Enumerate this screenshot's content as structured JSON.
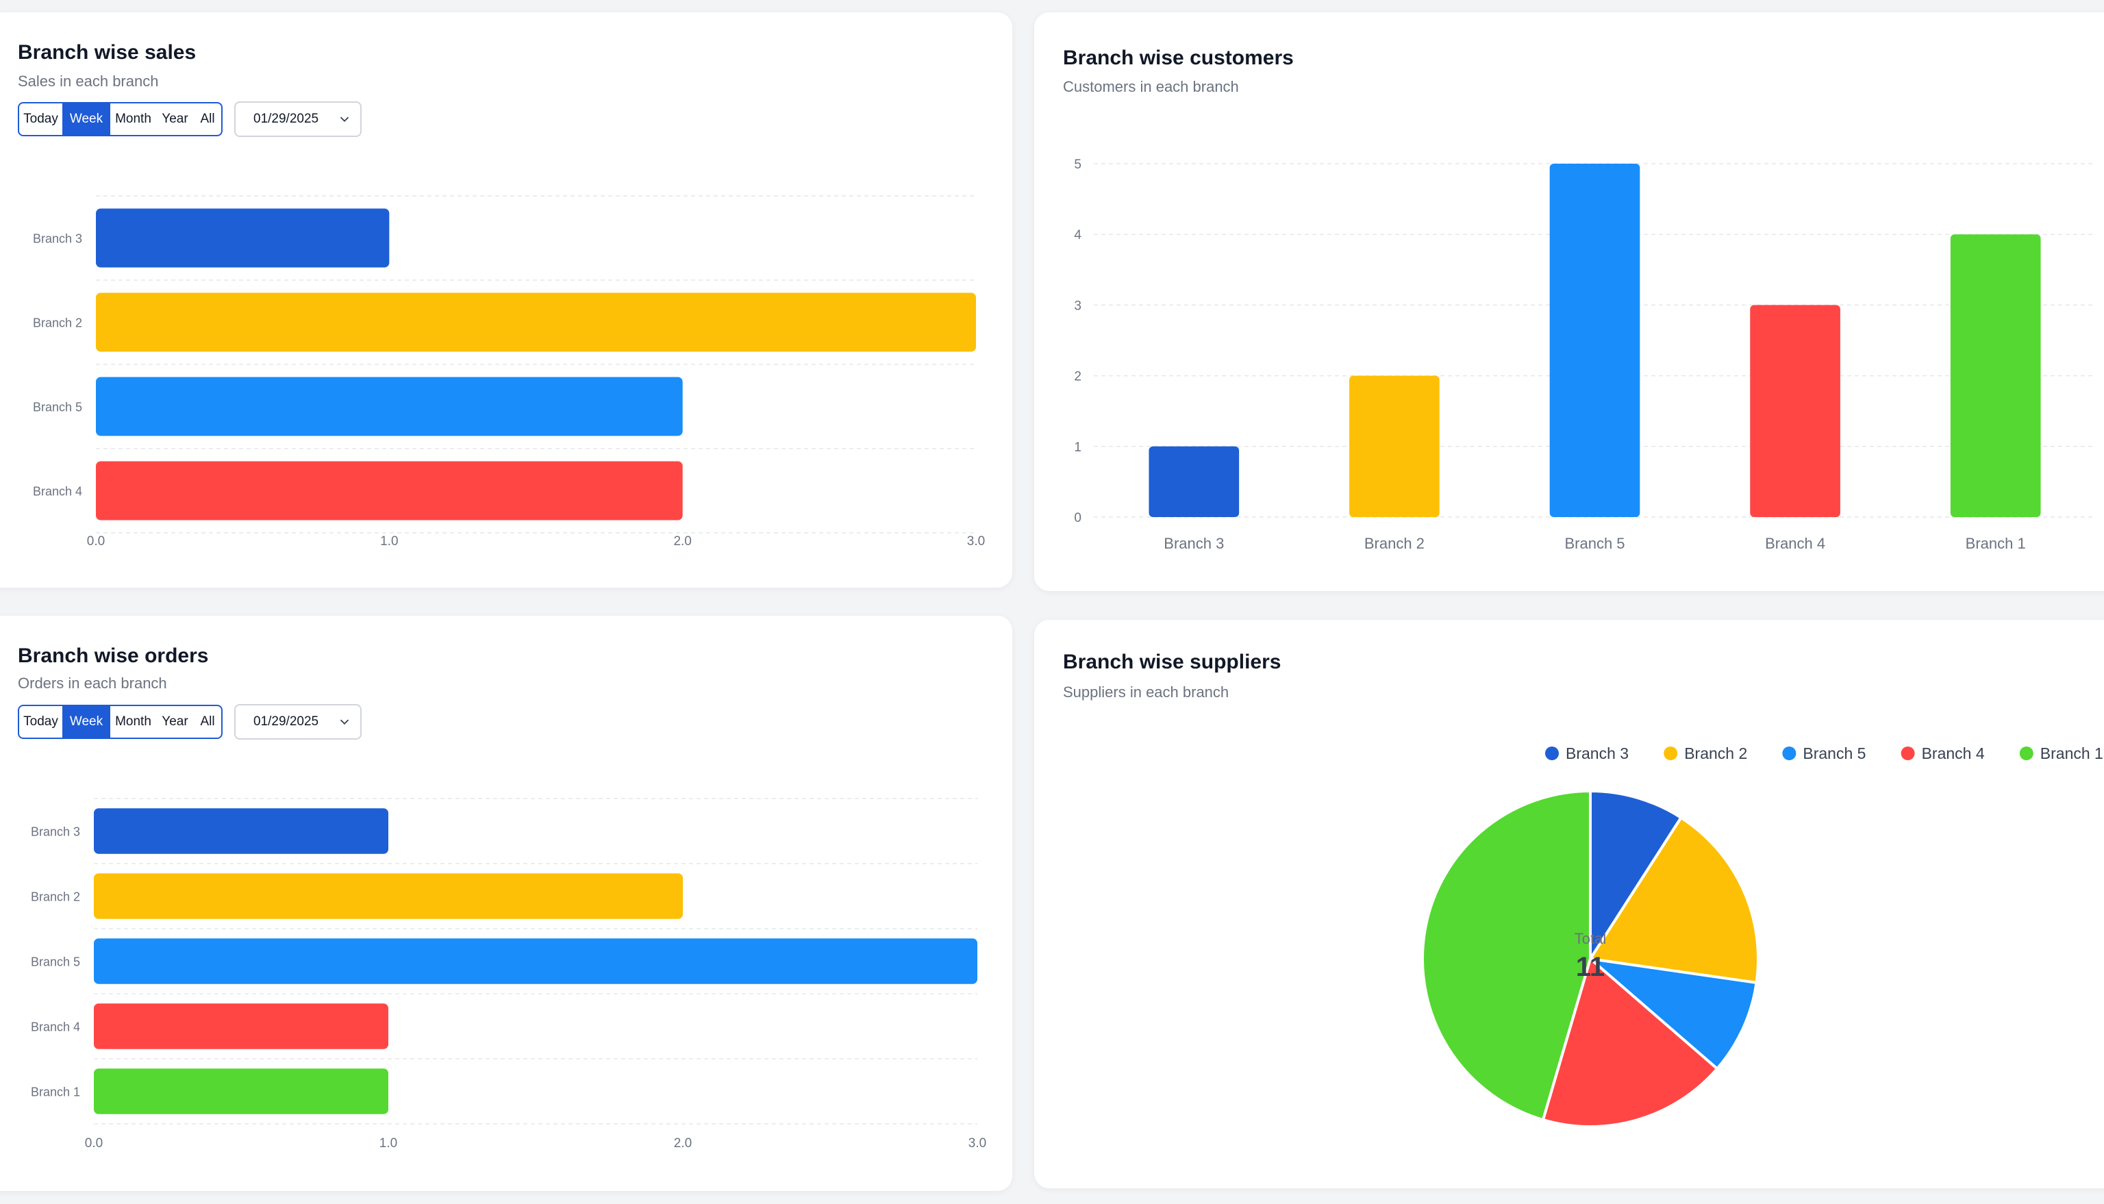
{
  "colors": {
    "Branch 3": "#1e5fd6",
    "Branch 2": "#fdc006",
    "Branch 5": "#198df9",
    "Branch 4": "#ff4645",
    "Branch 1": "#55d831"
  },
  "sales": {
    "title": "Branch wise sales",
    "subtitle": "Sales in each branch",
    "filters": [
      "Today",
      "Week",
      "Month",
      "Year",
      "All"
    ],
    "active_filter": "Week",
    "date": "01/29/2025",
    "chart_data": {
      "type": "bar",
      "orientation": "horizontal",
      "categories": [
        "Branch 3",
        "Branch 2",
        "Branch 5",
        "Branch 4"
      ],
      "values": [
        1.0,
        3.0,
        2.0,
        2.0
      ],
      "xlim": [
        0,
        3
      ],
      "ticks": [
        "0.0",
        "1.0",
        "2.0",
        "3.0"
      ],
      "grid": true
    }
  },
  "orders": {
    "title": "Branch wise orders",
    "subtitle": "Orders in each branch",
    "filters": [
      "Today",
      "Week",
      "Month",
      "Year",
      "All"
    ],
    "active_filter": "Week",
    "date": "01/29/2025",
    "chart_data": {
      "type": "bar",
      "orientation": "horizontal",
      "categories": [
        "Branch 3",
        "Branch 2",
        "Branch 5",
        "Branch 4",
        "Branch 1"
      ],
      "values": [
        1.0,
        2.0,
        3.0,
        1.0,
        1.0
      ],
      "xlim": [
        0,
        3
      ],
      "ticks": [
        "0.0",
        "1.0",
        "2.0",
        "3.0"
      ],
      "grid": true
    }
  },
  "customers": {
    "title": "Branch wise customers",
    "subtitle": "Customers in each branch",
    "chart_data": {
      "type": "bar",
      "orientation": "vertical",
      "categories": [
        "Branch 3",
        "Branch 2",
        "Branch 5",
        "Branch 4",
        "Branch 1"
      ],
      "values": [
        1,
        2,
        5,
        3,
        4
      ],
      "ylim": [
        0,
        5
      ],
      "ticks": [
        "0",
        "1",
        "2",
        "3",
        "4",
        "5"
      ],
      "grid": true
    }
  },
  "suppliers": {
    "title": "Branch wise suppliers",
    "subtitle": "Suppliers in each branch",
    "center_label": "Total",
    "center_value": "11",
    "chart_data": {
      "type": "pie",
      "categories": [
        "Branch 3",
        "Branch 2",
        "Branch 5",
        "Branch 4",
        "Branch 1"
      ],
      "values": [
        1,
        2,
        1,
        2,
        5
      ],
      "legend": "top-right"
    }
  }
}
